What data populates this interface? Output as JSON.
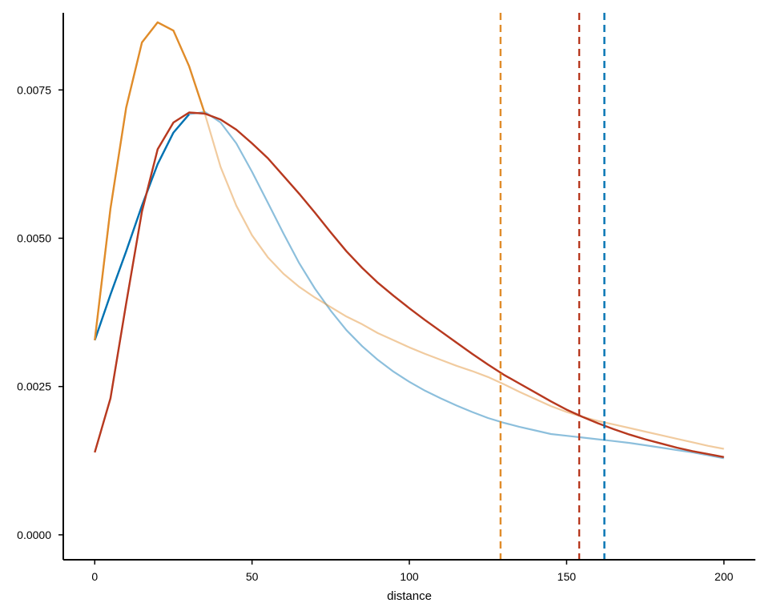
{
  "chart_data": {
    "type": "line",
    "title": "",
    "xlabel": "distance",
    "ylabel": "",
    "xlim": [
      -10,
      210
    ],
    "ylim": [
      -0.00042,
      0.0088
    ],
    "x_ticks": [
      0,
      50,
      100,
      150,
      200
    ],
    "x_tick_labels": [
      "0",
      "50",
      "100",
      "150",
      "200"
    ],
    "y_ticks": [
      0,
      0.0025,
      0.005,
      0.0075
    ],
    "y_tick_labels": [
      "0.0000",
      "0.0025",
      "0.0050",
      "0.0075"
    ],
    "grid": false,
    "legend": "none",
    "series": [
      {
        "color": "#0072B2",
        "highlight_until": 31,
        "points": [
          [
            0,
            0.00328
          ],
          [
            5,
            0.00405
          ],
          [
            10,
            0.00478
          ],
          [
            15,
            0.00555
          ],
          [
            20,
            0.00625
          ],
          [
            25,
            0.00678
          ],
          [
            30,
            0.00709
          ],
          [
            35,
            0.00713
          ],
          [
            40,
            0.00695
          ],
          [
            45,
            0.0066
          ],
          [
            50,
            0.00612
          ],
          [
            55,
            0.0056
          ],
          [
            60,
            0.00508
          ],
          [
            65,
            0.00458
          ],
          [
            70,
            0.00415
          ],
          [
            75,
            0.00378
          ],
          [
            80,
            0.00345
          ],
          [
            85,
            0.00318
          ],
          [
            90,
            0.00295
          ],
          [
            95,
            0.00275
          ],
          [
            100,
            0.00258
          ],
          [
            105,
            0.00243
          ],
          [
            110,
            0.0023
          ],
          [
            115,
            0.00218
          ],
          [
            120,
            0.00207
          ],
          [
            125,
            0.00197
          ],
          [
            130,
            0.00189
          ],
          [
            135,
            0.00182
          ],
          [
            140,
            0.00176
          ],
          [
            145,
            0.0017
          ],
          [
            150,
            0.00167
          ],
          [
            155,
            0.00164
          ],
          [
            160,
            0.00161
          ],
          [
            165,
            0.00158
          ],
          [
            170,
            0.00155
          ],
          [
            175,
            0.00151
          ],
          [
            180,
            0.00147
          ],
          [
            185,
            0.00143
          ],
          [
            190,
            0.00139
          ],
          [
            195,
            0.00134
          ],
          [
            200,
            0.00129
          ]
        ],
        "vline": 162
      },
      {
        "color": "#E08C2A",
        "highlight_until": 35,
        "points": [
          [
            0,
            0.00328
          ],
          [
            5,
            0.0055
          ],
          [
            10,
            0.0072
          ],
          [
            15,
            0.0083
          ],
          [
            20,
            0.00864
          ],
          [
            25,
            0.0085
          ],
          [
            30,
            0.0079
          ],
          [
            35,
            0.0071
          ],
          [
            40,
            0.0062
          ],
          [
            45,
            0.00555
          ],
          [
            50,
            0.00505
          ],
          [
            55,
            0.00468
          ],
          [
            60,
            0.0044
          ],
          [
            65,
            0.00418
          ],
          [
            70,
            0.004
          ],
          [
            75,
            0.00384
          ],
          [
            80,
            0.00368
          ],
          [
            85,
            0.00355
          ],
          [
            90,
            0.0034
          ],
          [
            95,
            0.00328
          ],
          [
            100,
            0.00316
          ],
          [
            105,
            0.00305
          ],
          [
            110,
            0.00295
          ],
          [
            115,
            0.00285
          ],
          [
            120,
            0.00276
          ],
          [
            125,
            0.00266
          ],
          [
            130,
            0.00254
          ],
          [
            135,
            0.00241
          ],
          [
            140,
            0.00229
          ],
          [
            145,
            0.00217
          ],
          [
            150,
            0.00207
          ],
          [
            155,
            0.00199
          ],
          [
            160,
            0.00192
          ],
          [
            165,
            0.00186
          ],
          [
            170,
            0.0018
          ],
          [
            175,
            0.00174
          ],
          [
            180,
            0.00168
          ],
          [
            185,
            0.00162
          ],
          [
            190,
            0.00156
          ],
          [
            195,
            0.0015
          ],
          [
            200,
            0.00145
          ]
        ],
        "vline": 129
      },
      {
        "color": "#B7391F",
        "highlight_until": 200,
        "points": [
          [
            0,
            0.00139
          ],
          [
            5,
            0.0023
          ],
          [
            10,
            0.0039
          ],
          [
            15,
            0.00545
          ],
          [
            20,
            0.0065
          ],
          [
            25,
            0.00695
          ],
          [
            30,
            0.00712
          ],
          [
            35,
            0.0071
          ],
          [
            40,
            0.007
          ],
          [
            45,
            0.00683
          ],
          [
            50,
            0.0066
          ],
          [
            55,
            0.00635
          ],
          [
            60,
            0.00605
          ],
          [
            65,
            0.00575
          ],
          [
            70,
            0.00543
          ],
          [
            75,
            0.0051
          ],
          [
            80,
            0.00478
          ],
          [
            85,
            0.0045
          ],
          [
            90,
            0.00425
          ],
          [
            95,
            0.00403
          ],
          [
            100,
            0.00382
          ],
          [
            105,
            0.00362
          ],
          [
            110,
            0.00343
          ],
          [
            115,
            0.00324
          ],
          [
            120,
            0.00305
          ],
          [
            125,
            0.00287
          ],
          [
            130,
            0.0027
          ],
          [
            135,
            0.00255
          ],
          [
            140,
            0.0024
          ],
          [
            145,
            0.00225
          ],
          [
            150,
            0.00211
          ],
          [
            155,
            0.00199
          ],
          [
            160,
            0.00188
          ],
          [
            165,
            0.00178
          ],
          [
            170,
            0.00169
          ],
          [
            175,
            0.00161
          ],
          [
            180,
            0.00154
          ],
          [
            185,
            0.00147
          ],
          [
            190,
            0.00141
          ],
          [
            195,
            0.00136
          ],
          [
            200,
            0.00131
          ]
        ],
        "vline": 154
      }
    ]
  }
}
